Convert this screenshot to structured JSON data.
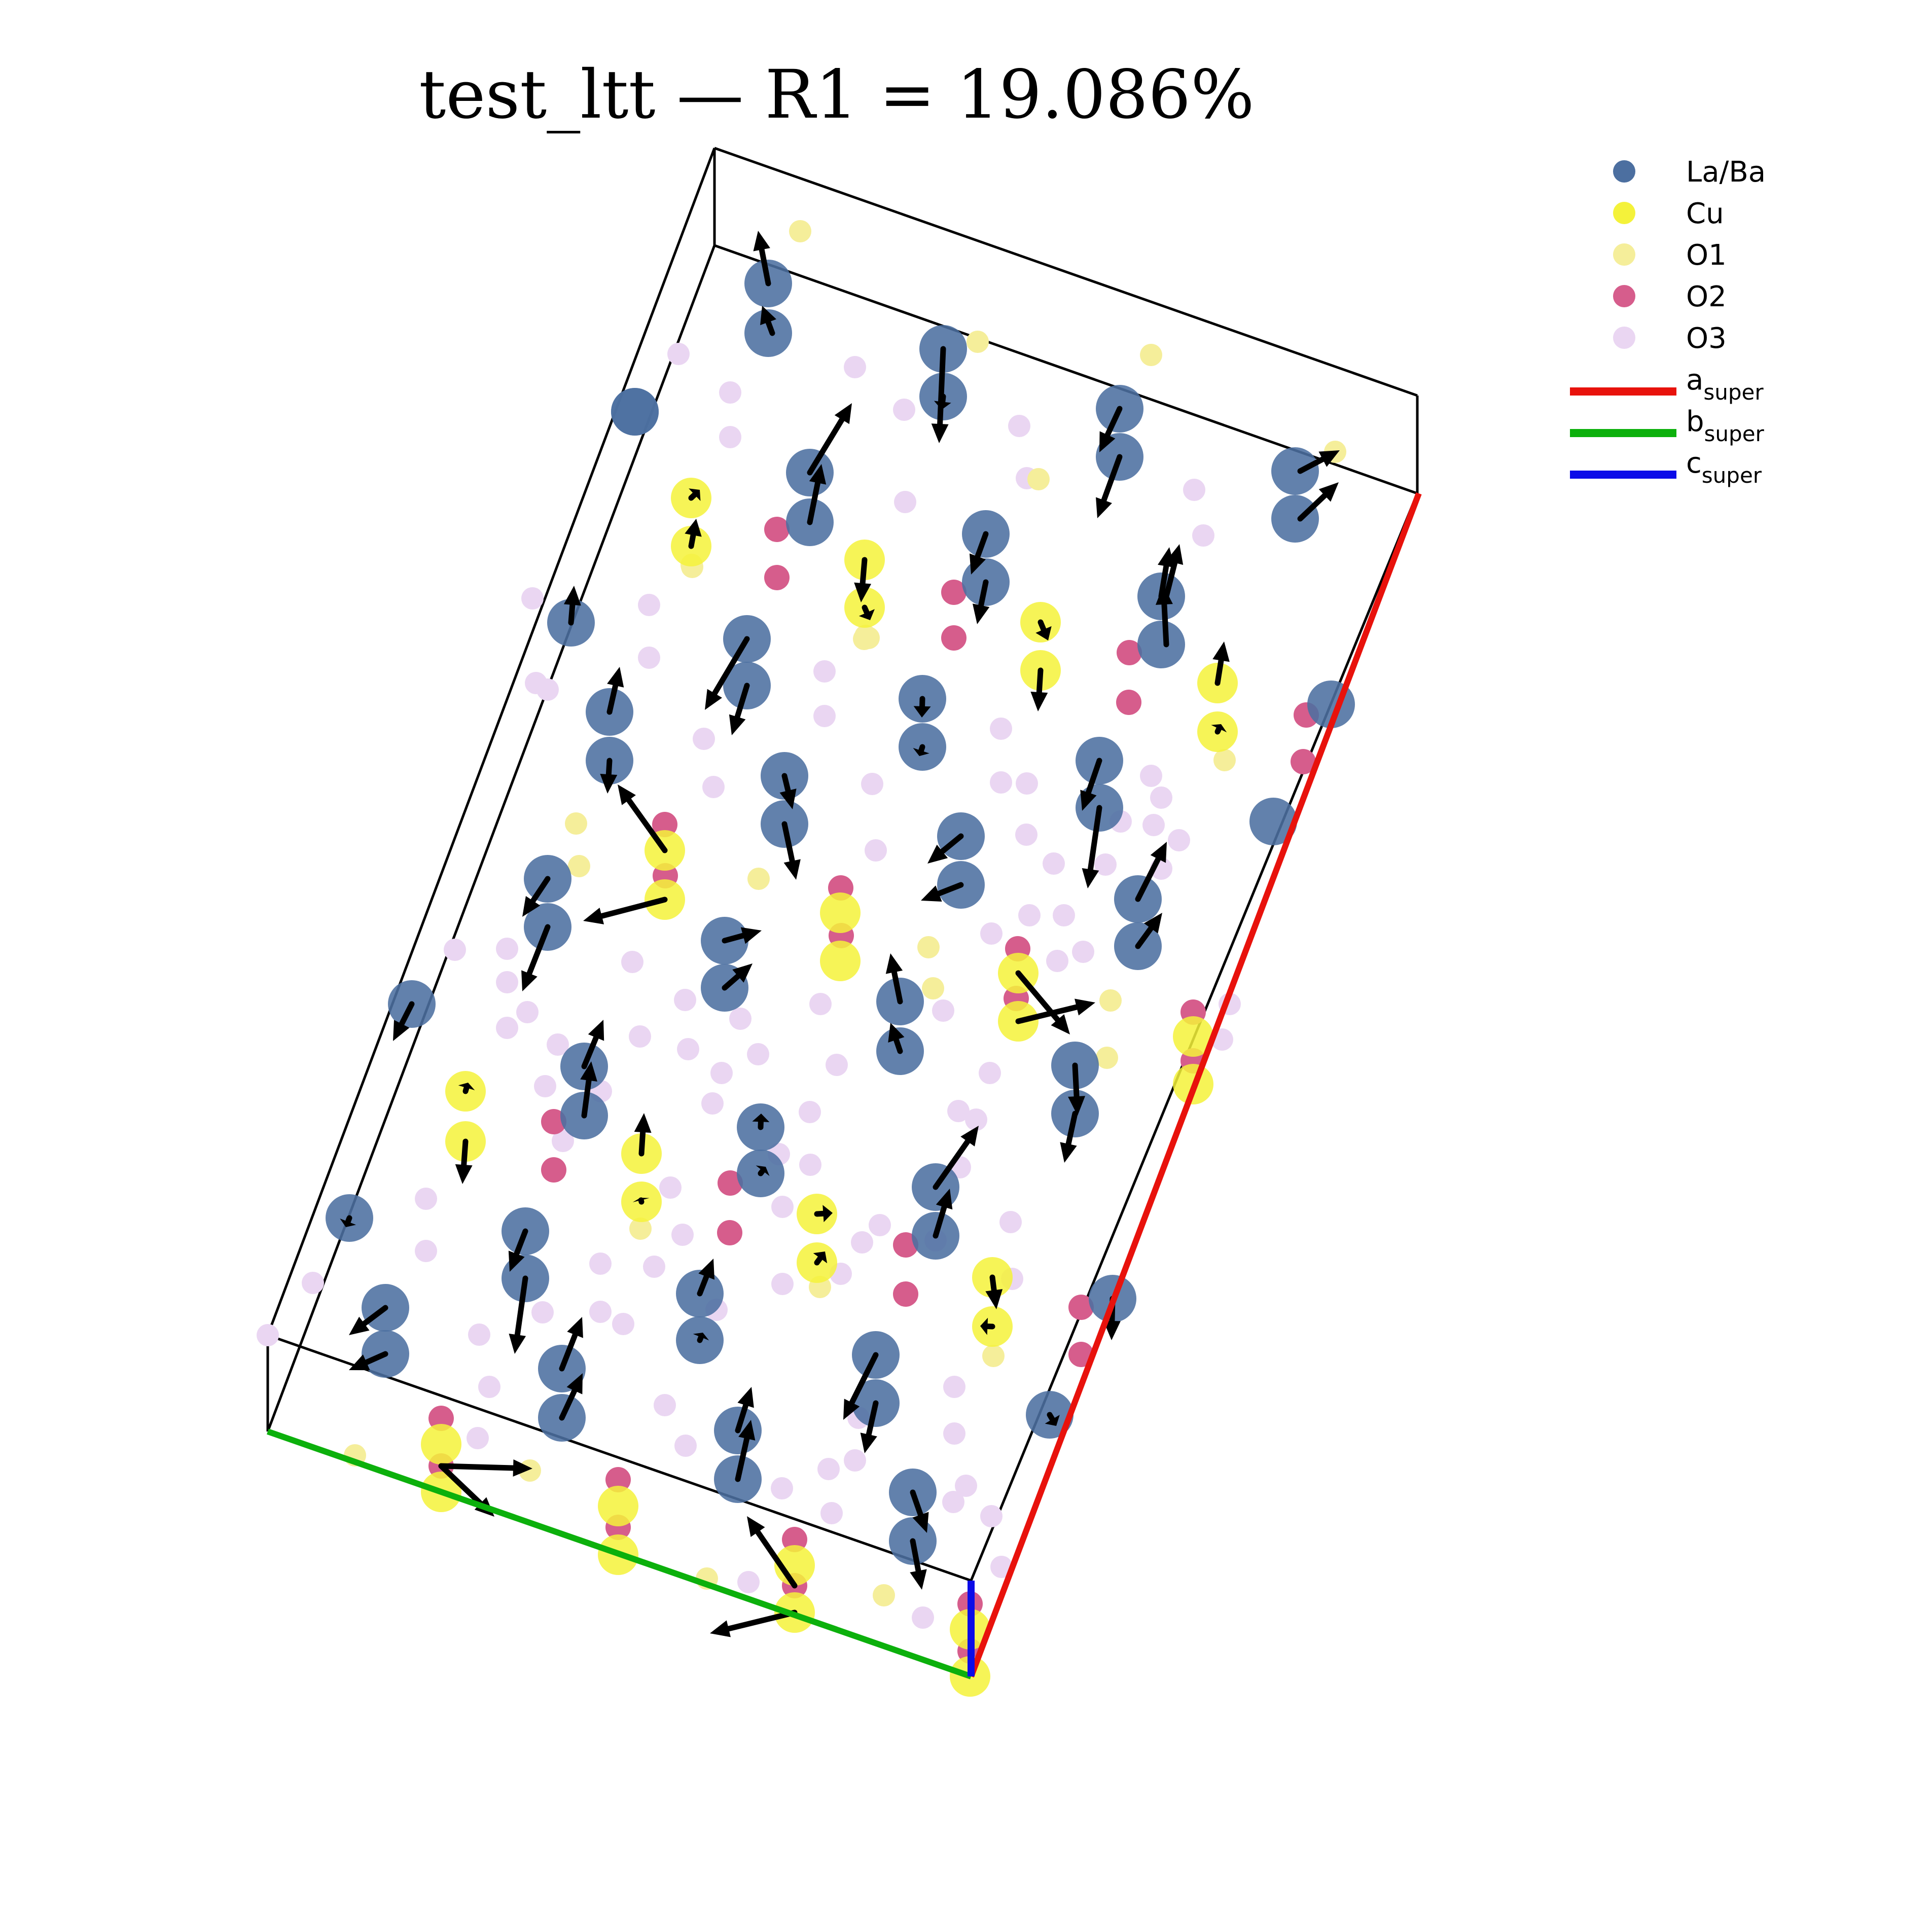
{
  "chart_data": {
    "type": "scatter",
    "title": "test_ltt — R1 = 19.086%",
    "legend": [
      {
        "label": "La/Ba",
        "color": "#4c6fa0",
        "kind": "marker"
      },
      {
        "label": "Cu",
        "color": "#f4f23a",
        "kind": "marker"
      },
      {
        "label": "O1",
        "color": "#f5ee9a",
        "kind": "marker"
      },
      {
        "label": "O2",
        "color": "#d65d8c",
        "kind": "marker"
      },
      {
        "label": "O3",
        "color": "#ead6f2",
        "kind": "marker"
      },
      {
        "label": "a",
        "sub": "super",
        "color": "#e8120c",
        "kind": "line"
      },
      {
        "label": "b",
        "sub": "super",
        "color": "#0cb00c",
        "kind": "line"
      },
      {
        "label": "c",
        "sub": "super",
        "color": "#0c0ce8",
        "kind": "line"
      }
    ],
    "legend_position": "upper-right",
    "axis_lines": {
      "a": "#e8120c",
      "b": "#0cb00c",
      "c": "#0c0ce8"
    },
    "grid": false
  }
}
